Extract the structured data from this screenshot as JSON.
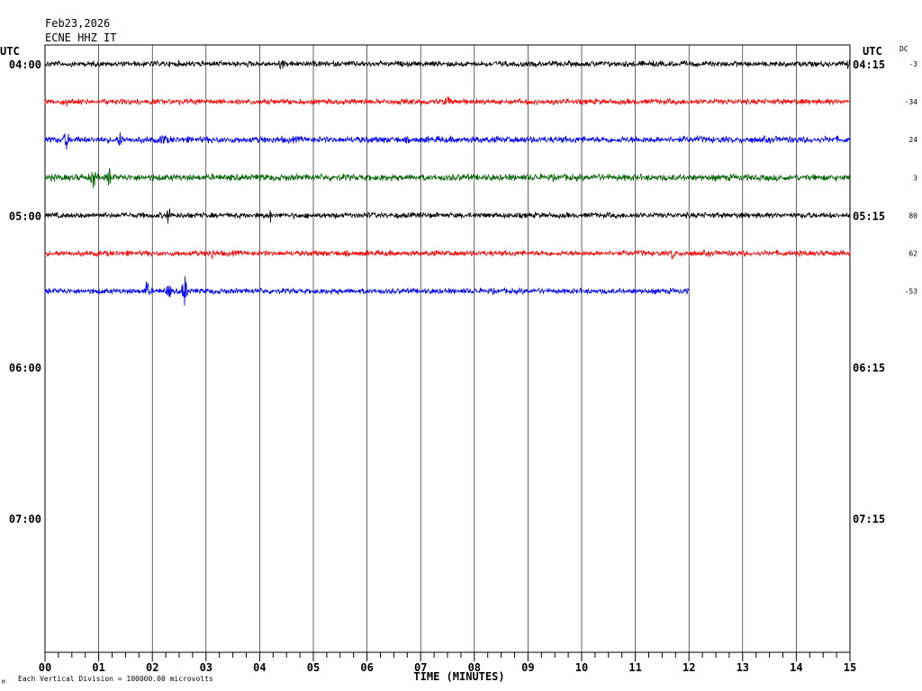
{
  "header": {
    "date": "Feb23,2026",
    "station": "ECNE HHZ IT"
  },
  "chart_data": {
    "type": "line",
    "title": "ECNE HHZ IT",
    "xlabel": "TIME (MINUTES)",
    "x_ticks": [
      "00",
      "01",
      "02",
      "03",
      "04",
      "05",
      "06",
      "07",
      "08",
      "09",
      "10",
      "11",
      "12",
      "13",
      "14",
      "15"
    ],
    "xlim": [
      0,
      15
    ],
    "left_axis_label": "UTC",
    "right_axis_label": "UTC",
    "dc_label": "DC",
    "left_time_labels": [
      "04:00",
      "05:00",
      "06:00",
      "07:00"
    ],
    "right_time_labels": [
      "04:15",
      "05:15",
      "06:15",
      "07:15"
    ],
    "hour_label_rows": [
      0,
      4,
      8,
      12
    ],
    "dc_offsets": [
      "-3",
      "-34",
      "24",
      "3",
      "80",
      "62",
      "-53"
    ],
    "footnote": "Each Vertical Division = 100000.00 microvolts",
    "corner_mark": "M",
    "colors": [
      "#000000",
      "#ff0000",
      "#0000ff",
      "#006400"
    ],
    "traces": [
      {
        "row": 0,
        "color": "#000000",
        "start_min": 0,
        "end_min": 15,
        "noise": 2.5,
        "spikes": [
          [
            4.4,
            6
          ],
          [
            15.0,
            7
          ]
        ]
      },
      {
        "row": 1,
        "color": "#ff0000",
        "start_min": 0,
        "end_min": 15,
        "noise": 2.5,
        "spikes": [
          [
            0.4,
            3
          ],
          [
            7.5,
            5
          ]
        ]
      },
      {
        "row": 2,
        "color": "#0000ff",
        "start_min": 0,
        "end_min": 15,
        "noise": 3.0,
        "spikes": [
          [
            0.4,
            9
          ],
          [
            1.4,
            7
          ],
          [
            2.2,
            6
          ]
        ]
      },
      {
        "row": 3,
        "color": "#006400",
        "start_min": 0,
        "end_min": 15,
        "noise": 3.0,
        "spikes": [
          [
            0.9,
            12
          ],
          [
            1.2,
            8
          ]
        ]
      },
      {
        "row": 4,
        "color": "#000000",
        "start_min": 0,
        "end_min": 15,
        "noise": 2.5,
        "spikes": [
          [
            2.3,
            8
          ],
          [
            4.2,
            5
          ]
        ]
      },
      {
        "row": 5,
        "color": "#ff0000",
        "start_min": 0,
        "end_min": 15,
        "noise": 2.5,
        "spikes": [
          [
            3.1,
            5
          ],
          [
            11.7,
            6
          ]
        ]
      },
      {
        "row": 6,
        "color": "#0000ff",
        "start_min": 0,
        "end_min": 12,
        "noise": 2.5,
        "spikes": [
          [
            1.9,
            10
          ],
          [
            2.6,
            19
          ],
          [
            2.3,
            8
          ]
        ]
      }
    ]
  }
}
